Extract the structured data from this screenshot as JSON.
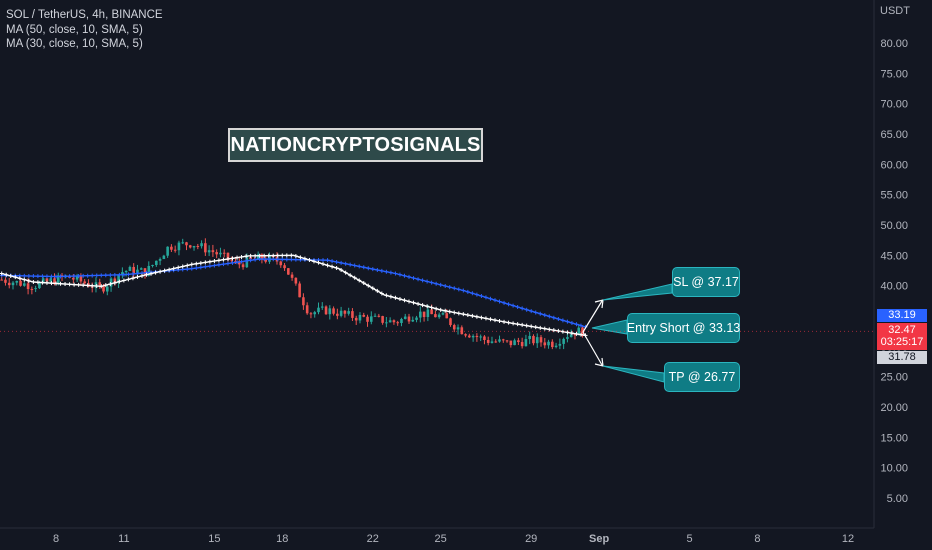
{
  "legend": {
    "title": "SOL / TetherUS, 4h, BINANCE",
    "ma1": "MA (50, close, 10, SMA, 5)",
    "ma2": "MA (30, close, 10, SMA, 5)"
  },
  "watermark": "NATIONCRYPTOSIGNALS",
  "annotations": {
    "sl": "SL @ 37.17",
    "entry": "Entry Short @ 33.13",
    "tp": "TP @ 26.77"
  },
  "price_axis": {
    "currency": "USDT",
    "ticks": [
      "80.00",
      "75.00",
      "70.00",
      "65.00",
      "60.00",
      "55.00",
      "50.00",
      "45.00",
      "40.00",
      "35.00",
      "30.00",
      "25.00",
      "20.00",
      "15.00",
      "10.00",
      "5.00"
    ],
    "tick_values": [
      80,
      75,
      70,
      65,
      60,
      55,
      50,
      45,
      40,
      35,
      30,
      25,
      20,
      15,
      10,
      5
    ]
  },
  "time_axis": {
    "ticks": [
      "8",
      "11",
      "15",
      "18",
      "22",
      "25",
      "29",
      "Sep",
      "5",
      "8",
      "12"
    ],
    "tick_days": [
      8,
      11,
      15,
      18,
      22,
      25,
      29,
      32,
      36,
      39,
      43
    ]
  },
  "price_tags": {
    "ma_blue": "33.19",
    "last_price": "32.47",
    "countdown": "03:25:17",
    "ma_white": "31.78"
  },
  "colors": {
    "background": "#131722",
    "up": "#26a69a",
    "down": "#ef5350",
    "ma_blue": "#2962ff",
    "ma_white": "#ffffff",
    "callout": "#0f7c85"
  },
  "chart_data": {
    "type": "candlestick",
    "series": [
      {
        "name": "MA (50, close, 10, SMA, 5)",
        "points": [
          [
            5.6,
            41.7
          ],
          [
            8,
            41.5
          ],
          [
            11,
            41.8
          ],
          [
            14,
            42.8
          ],
          [
            17,
            44.4
          ],
          [
            20,
            44.2
          ],
          [
            23,
            42.0
          ],
          [
            26,
            39.2
          ],
          [
            29,
            35.8
          ],
          [
            31.4,
            33.2
          ]
        ]
      },
      {
        "name": "MA (30, close, 10, SMA, 5)",
        "points": [
          [
            5.6,
            42.0
          ],
          [
            7,
            40.6
          ],
          [
            10,
            39.9
          ],
          [
            12,
            41.8
          ],
          [
            14,
            43.5
          ],
          [
            16.5,
            44.9
          ],
          [
            18.5,
            45.0
          ],
          [
            20.5,
            42.8
          ],
          [
            22.5,
            38.5
          ],
          [
            25,
            36.0
          ],
          [
            28,
            33.9
          ],
          [
            31.4,
            31.8
          ]
        ]
      }
    ],
    "close_path": [
      [
        5.6,
        41.0
      ],
      [
        7,
        40.0
      ],
      [
        8.5,
        41.5
      ],
      [
        10,
        39.5
      ],
      [
        11,
        42.5
      ],
      [
        12,
        42.3
      ],
      [
        13,
        46.5
      ],
      [
        14,
        47.0
      ],
      [
        15,
        45.5
      ],
      [
        16,
        43.5
      ],
      [
        17,
        44.5
      ],
      [
        18,
        44.0
      ],
      [
        18.7,
        39.0
      ],
      [
        19.2,
        35.5
      ],
      [
        20,
        36.0
      ],
      [
        21,
        35.0
      ],
      [
        22,
        34.5
      ],
      [
        23,
        34.0
      ],
      [
        24,
        35.5
      ],
      [
        25,
        35.0
      ],
      [
        26,
        32.5
      ],
      [
        27,
        31.0
      ],
      [
        28,
        30.5
      ],
      [
        29,
        31.0
      ],
      [
        30,
        30.5
      ],
      [
        30.5,
        31.8
      ],
      [
        31,
        32.5
      ],
      [
        31.3,
        32.47
      ]
    ],
    "last_price": 32.47,
    "ylim": [
      0,
      85
    ],
    "x_unit": "day"
  }
}
